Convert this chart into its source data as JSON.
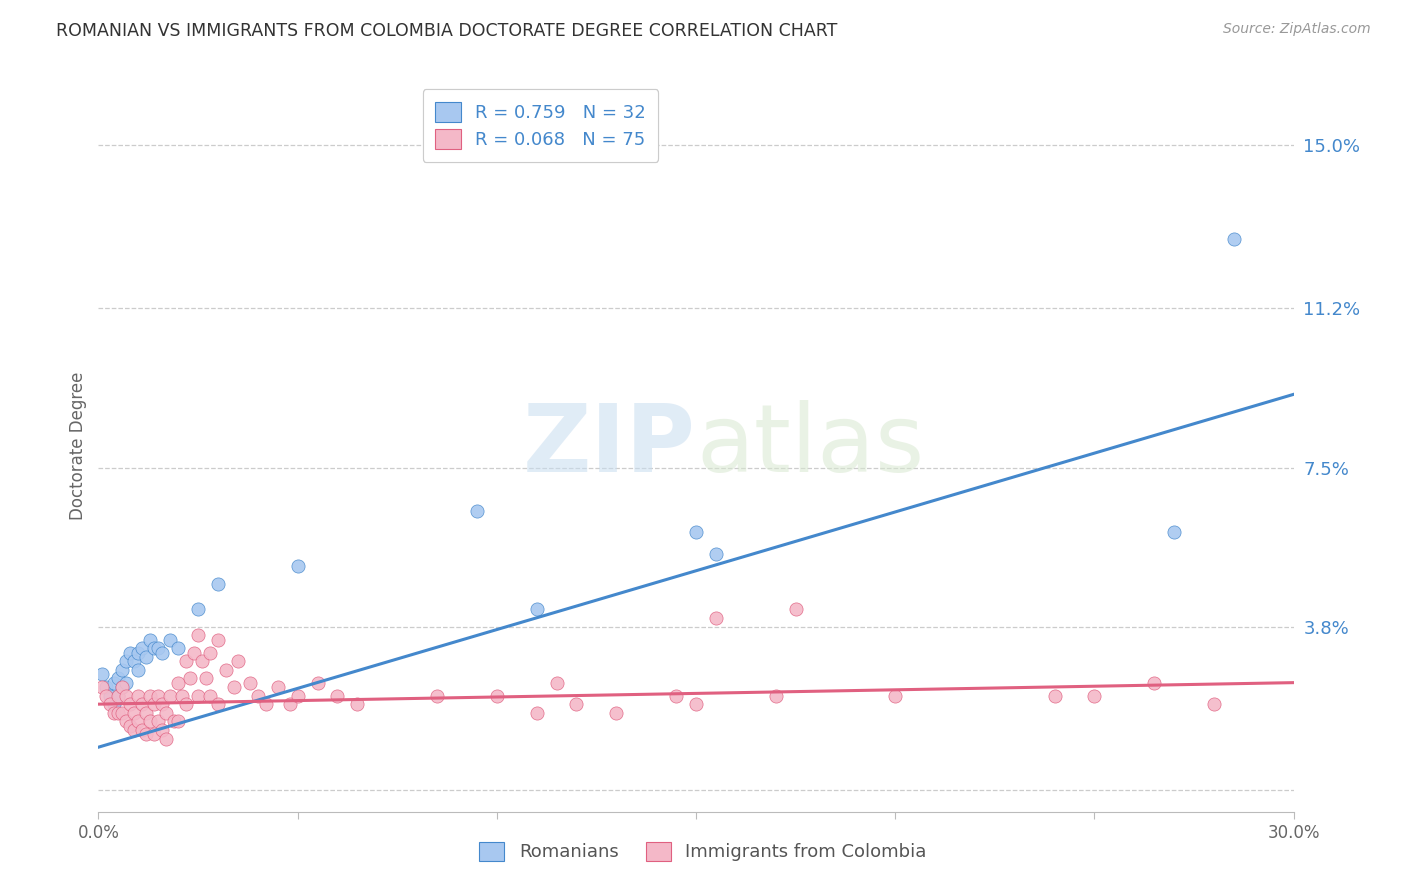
{
  "title": "ROMANIAN VS IMMIGRANTS FROM COLOMBIA DOCTORATE DEGREE CORRELATION CHART",
  "source": "Source: ZipAtlas.com",
  "ylabel": "Doctorate Degree",
  "xlim": [
    0,
    0.3
  ],
  "ylim": [
    -0.005,
    0.165
  ],
  "yticks": [
    0.0,
    0.038,
    0.075,
    0.112,
    0.15
  ],
  "ytick_labels": [
    "",
    "3.8%",
    "7.5%",
    "11.2%",
    "15.0%"
  ],
  "xticks": [
    0.0,
    0.05,
    0.1,
    0.15,
    0.2,
    0.25,
    0.3
  ],
  "xtick_labels": [
    "0.0%",
    "",
    "",
    "",
    "",
    "",
    "30.0%"
  ],
  "blue_scatter_color": "#a8c8f0",
  "pink_scatter_color": "#f4b8c8",
  "line_blue_color": "#4488cc",
  "line_pink_color": "#e06080",
  "axis_label_color": "#4488cc",
  "r_blue": 0.759,
  "n_blue": 32,
  "r_pink": 0.068,
  "n_pink": 75,
  "legend_label_blue": "Romanians",
  "legend_label_pink": "Immigrants from Colombia",
  "watermark_zip": "ZIP",
  "watermark_atlas": "atlas",
  "blue_line_x": [
    0.0,
    0.3
  ],
  "blue_line_y": [
    0.01,
    0.092
  ],
  "pink_line_x": [
    0.0,
    0.3
  ],
  "pink_line_y": [
    0.02,
    0.025
  ],
  "romanians_x": [
    0.001,
    0.002,
    0.003,
    0.004,
    0.004,
    0.005,
    0.005,
    0.006,
    0.006,
    0.007,
    0.007,
    0.008,
    0.009,
    0.01,
    0.01,
    0.011,
    0.012,
    0.013,
    0.014,
    0.015,
    0.016,
    0.018,
    0.02,
    0.025,
    0.03,
    0.05,
    0.095,
    0.11,
    0.15,
    0.155,
    0.27,
    0.285
  ],
  "romanians_y": [
    0.027,
    0.024,
    0.022,
    0.025,
    0.02,
    0.026,
    0.022,
    0.028,
    0.024,
    0.03,
    0.025,
    0.032,
    0.03,
    0.028,
    0.032,
    0.033,
    0.031,
    0.035,
    0.033,
    0.033,
    0.032,
    0.035,
    0.033,
    0.042,
    0.048,
    0.052,
    0.065,
    0.042,
    0.06,
    0.055,
    0.06,
    0.128
  ],
  "colombians_x": [
    0.001,
    0.002,
    0.003,
    0.004,
    0.005,
    0.005,
    0.006,
    0.006,
    0.007,
    0.007,
    0.008,
    0.008,
    0.009,
    0.009,
    0.01,
    0.01,
    0.011,
    0.011,
    0.012,
    0.012,
    0.013,
    0.013,
    0.014,
    0.014,
    0.015,
    0.015,
    0.016,
    0.016,
    0.017,
    0.017,
    0.018,
    0.019,
    0.02,
    0.02,
    0.021,
    0.022,
    0.022,
    0.023,
    0.024,
    0.025,
    0.025,
    0.026,
    0.027,
    0.028,
    0.028,
    0.03,
    0.03,
    0.032,
    0.034,
    0.035,
    0.038,
    0.04,
    0.042,
    0.045,
    0.048,
    0.05,
    0.055,
    0.06,
    0.065,
    0.085,
    0.1,
    0.11,
    0.115,
    0.12,
    0.13,
    0.145,
    0.15,
    0.155,
    0.17,
    0.175,
    0.2,
    0.24,
    0.25,
    0.265,
    0.28
  ],
  "colombians_y": [
    0.024,
    0.022,
    0.02,
    0.018,
    0.022,
    0.018,
    0.024,
    0.018,
    0.022,
    0.016,
    0.02,
    0.015,
    0.018,
    0.014,
    0.022,
    0.016,
    0.02,
    0.014,
    0.018,
    0.013,
    0.022,
    0.016,
    0.02,
    0.013,
    0.022,
    0.016,
    0.02,
    0.014,
    0.018,
    0.012,
    0.022,
    0.016,
    0.025,
    0.016,
    0.022,
    0.03,
    0.02,
    0.026,
    0.032,
    0.036,
    0.022,
    0.03,
    0.026,
    0.032,
    0.022,
    0.035,
    0.02,
    0.028,
    0.024,
    0.03,
    0.025,
    0.022,
    0.02,
    0.024,
    0.02,
    0.022,
    0.025,
    0.022,
    0.02,
    0.022,
    0.022,
    0.018,
    0.025,
    0.02,
    0.018,
    0.022,
    0.02,
    0.04,
    0.022,
    0.042,
    0.022,
    0.022,
    0.022,
    0.025,
    0.02
  ]
}
